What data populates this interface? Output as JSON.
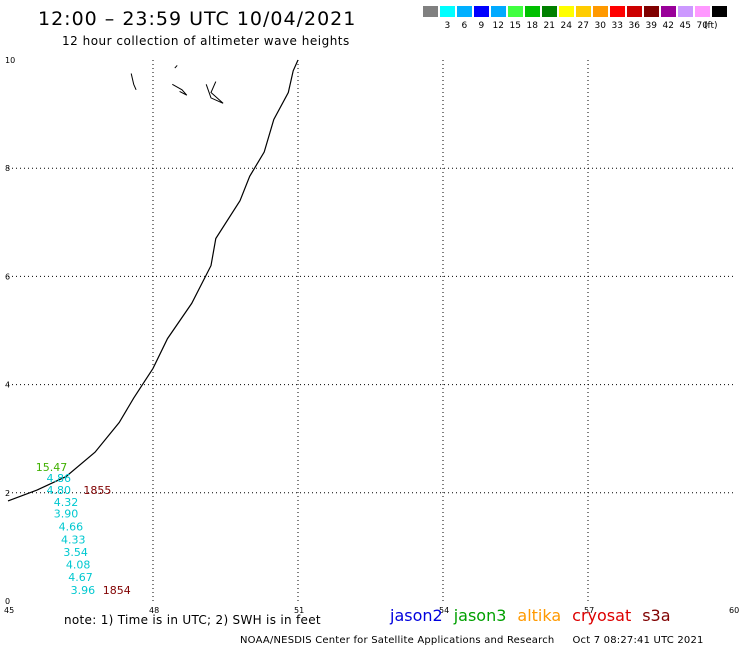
{
  "header": {
    "title": "12:00 – 23:59 UTC 10/04/2021",
    "subtitle": "12 hour collection of altimeter wave heights"
  },
  "color_scale": {
    "unit_label": "(ft)",
    "bins": [
      {
        "label": "",
        "color": "#808080"
      },
      {
        "label": "3",
        "color": "#00ffff"
      },
      {
        "label": "6",
        "color": "#00b0ff"
      },
      {
        "label": "9",
        "color": "#0000ff"
      },
      {
        "label": "12",
        "color": "#00aaff"
      },
      {
        "label": "15",
        "color": "#40ff40"
      },
      {
        "label": "18",
        "color": "#00c000"
      },
      {
        "label": "21",
        "color": "#008000"
      },
      {
        "label": "24",
        "color": "#ffff00"
      },
      {
        "label": "27",
        "color": "#ffcc00"
      },
      {
        "label": "30",
        "color": "#ff9900"
      },
      {
        "label": "33",
        "color": "#ff0000"
      },
      {
        "label": "36",
        "color": "#cc0000"
      },
      {
        "label": "39",
        "color": "#800000"
      },
      {
        "label": "42",
        "color": "#990099"
      },
      {
        "label": "45",
        "color": "#cc99ff"
      },
      {
        "label": "70",
        "color": "#ff99ff"
      },
      {
        "label": "",
        "color": "#000000"
      }
    ]
  },
  "map": {
    "lon_range": [
      45,
      60
    ],
    "lat_range": [
      0,
      10
    ],
    "lon_ticks": [
      "45",
      "48",
      "51",
      "54",
      "57",
      "60"
    ],
    "lat_ticks": [
      "0",
      "2",
      "4",
      "6",
      "8",
      "10"
    ],
    "coastline": [
      [
        45.0,
        1.85
      ],
      [
        45.6,
        2.05
      ],
      [
        46.2,
        2.3
      ],
      [
        46.8,
        2.75
      ],
      [
        47.3,
        3.3
      ],
      [
        47.6,
        3.75
      ],
      [
        48.0,
        4.3
      ],
      [
        48.3,
        4.85
      ],
      [
        48.8,
        5.5
      ],
      [
        49.2,
        6.2
      ],
      [
        49.3,
        6.7
      ],
      [
        49.8,
        7.4
      ],
      [
        50.0,
        7.85
      ],
      [
        50.3,
        8.3
      ],
      [
        50.5,
        8.9
      ],
      [
        50.8,
        9.4
      ],
      [
        50.9,
        9.8
      ],
      [
        51.0,
        10.0
      ]
    ],
    "islands": [
      [
        [
          47.55,
          9.75
        ],
        [
          47.6,
          9.55
        ],
        [
          47.65,
          9.45
        ]
      ],
      [
        [
          48.4,
          9.55
        ],
        [
          48.6,
          9.45
        ],
        [
          48.7,
          9.35
        ],
        [
          48.55,
          9.42
        ]
      ],
      [
        [
          49.1,
          9.55
        ],
        [
          49.2,
          9.3
        ],
        [
          49.45,
          9.2
        ],
        [
          49.2,
          9.4
        ],
        [
          49.3,
          9.6
        ]
      ],
      [
        [
          48.5,
          9.9
        ],
        [
          48.45,
          9.85
        ]
      ]
    ],
    "wave_readings": [
      {
        "text": "15.47",
        "color": "#40b000",
        "lon": 45.9,
        "lat": 2.4
      },
      {
        "text": "4.86",
        "color": "#00c8d0",
        "lon": 46.05,
        "lat": 2.2
      },
      {
        "text": "4.80",
        "color": "#00c8d0",
        "lon": 46.05,
        "lat": 1.98
      },
      {
        "text": "1855",
        "color": "#800000",
        "lon": 46.85,
        "lat": 1.98
      },
      {
        "text": "4.32",
        "color": "#00c8d0",
        "lon": 46.2,
        "lat": 1.76
      },
      {
        "text": "3.90",
        "color": "#00c8d0",
        "lon": 46.2,
        "lat": 1.54
      },
      {
        "text": "4.66",
        "color": "#00c8d0",
        "lon": 46.3,
        "lat": 1.3
      },
      {
        "text": "4.33",
        "color": "#00c8d0",
        "lon": 46.35,
        "lat": 1.06
      },
      {
        "text": "3.54",
        "color": "#00c8d0",
        "lon": 46.4,
        "lat": 0.83
      },
      {
        "text": "4.08",
        "color": "#00c8d0",
        "lon": 46.45,
        "lat": 0.6
      },
      {
        "text": "4.67",
        "color": "#00c8d0",
        "lon": 46.5,
        "lat": 0.37
      },
      {
        "text": "3.96",
        "color": "#00c8d0",
        "lon": 46.55,
        "lat": 0.13
      },
      {
        "text": "1854",
        "color": "#800000",
        "lon": 47.25,
        "lat": 0.13
      }
    ]
  },
  "footer": {
    "note": "note: 1) Time is in UTC; 2) SWH is in feet",
    "missions": [
      {
        "name": "jason2",
        "color": "#0000dd"
      },
      {
        "name": "jason3",
        "color": "#00a000"
      },
      {
        "name": "altika",
        "color": "#ff9900"
      },
      {
        "name": "cryosat",
        "color": "#dd0000"
      },
      {
        "name": "s3a",
        "color": "#800000"
      }
    ],
    "credit": "NOAA/NESDIS Center for Satellite Applications and Research",
    "timestamp": "Oct  7 08:27:41 UTC 2021"
  }
}
